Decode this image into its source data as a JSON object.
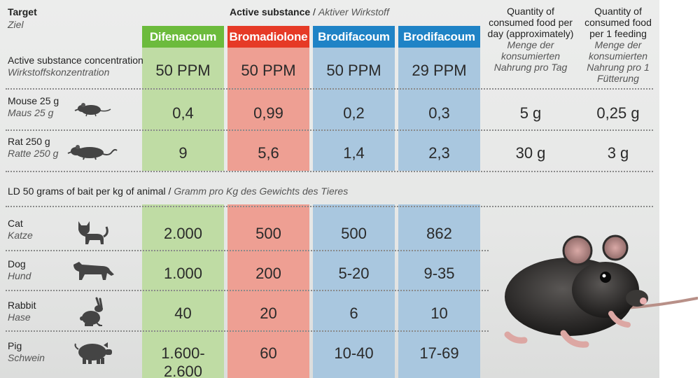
{
  "header": {
    "target_en": "Target",
    "target_de": "Ziel",
    "substance_en": "Active substance",
    "substance_sep": " / ",
    "substance_de": "Aktiver Wirkstoff",
    "qty_day_en": "Quantity of consumed food per day (approximately)",
    "qty_day_de": "Menge der konsumierten Nahrung pro Tag",
    "qty_feed_en": "Quantity of consumed food per 1 feeding",
    "qty_feed_de": "Menge der konsumierten Nahrung pro 1 Fütterung"
  },
  "substances": [
    {
      "name": "Difenacoum",
      "concentration": "50 PPM",
      "color": "#6cbb3c"
    },
    {
      "name": "Bromadiolone",
      "concentration": "50 PPM",
      "color": "#e63a26"
    },
    {
      "name": "Brodifacoum",
      "concentration": "50 PPM",
      "color": "#1f83c6"
    },
    {
      "name": "Brodifacoum",
      "concentration": "29 PPM",
      "color": "#1f83c6"
    }
  ],
  "concentration_row": {
    "label_en": "Active substance concentration",
    "label_de": "Wirkstoffskonzentration"
  },
  "rodent_rows": [
    {
      "label_en": "Mouse 25 g",
      "label_de": "Maus 25 g",
      "icon": "mouse-icon",
      "values": [
        "0,4",
        "0,99",
        "0,2",
        "0,3"
      ],
      "per_day": "5 g",
      "per_feeding": "0,25 g"
    },
    {
      "label_en": "Rat 250 g",
      "label_de": "Ratte 250 g",
      "icon": "rat-icon",
      "values": [
        "9",
        "5,6",
        "1,4",
        "2,3"
      ],
      "per_day": "30 g",
      "per_feeding": "3 g"
    }
  ],
  "ld50": {
    "label_en": "LD 50 grams of bait per kg of animal",
    "label_sep": " / ",
    "label_de": "Gramm pro Kg des Gewichts des Tieres"
  },
  "animal_rows": [
    {
      "label_en": "Cat",
      "label_de": "Katze",
      "icon": "cat-icon",
      "values": [
        "2.000",
        "500",
        "500",
        "862"
      ]
    },
    {
      "label_en": "Dog",
      "label_de": "Hund",
      "icon": "dog-icon",
      "values": [
        "1.000",
        "200",
        "5-20",
        "9-35"
      ]
    },
    {
      "label_en": "Rabbit",
      "label_de": "Hase",
      "icon": "rabbit-icon",
      "values": [
        "40",
        "20",
        "6",
        "10"
      ]
    },
    {
      "label_en": "Pig",
      "label_de": "Schwein",
      "icon": "pig-icon",
      "values": [
        "1.600-2.600",
        "60",
        "10-40",
        "17-69"
      ]
    }
  ],
  "photo": {
    "icon": "rat-photo-icon"
  }
}
